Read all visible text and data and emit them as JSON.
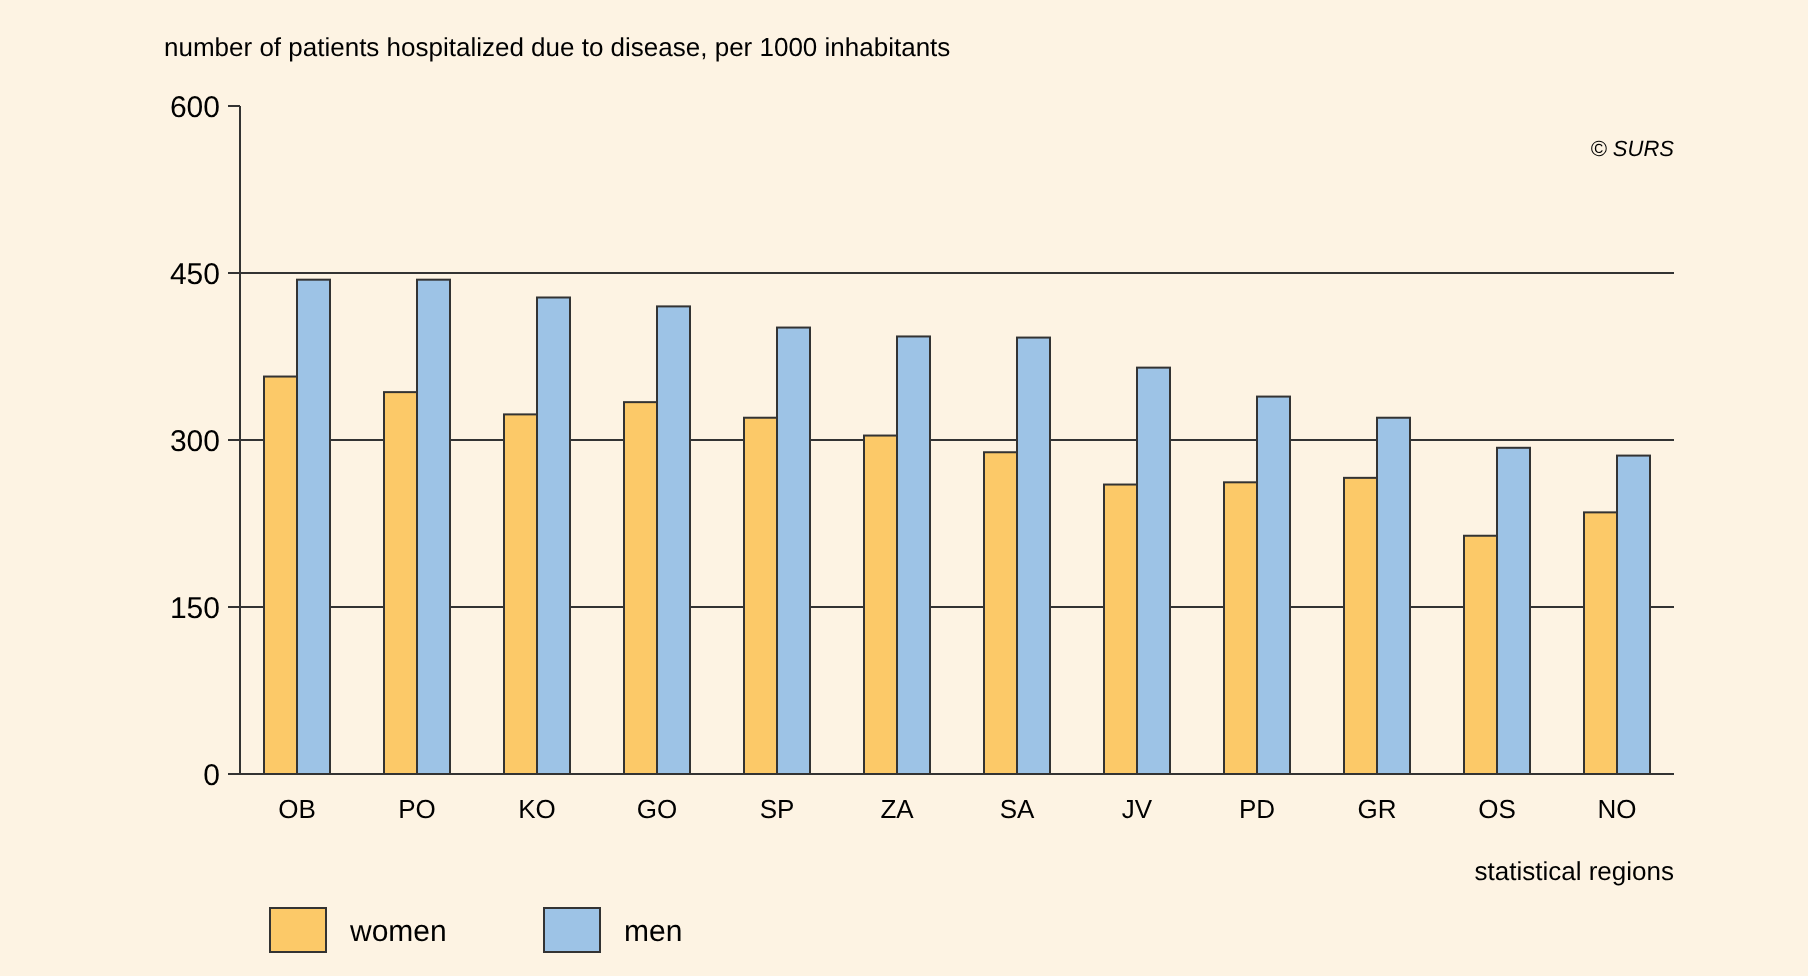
{
  "chart_data": {
    "type": "bar",
    "ylabel": "number of patients hospitalized due to disease, per 1000 inhabitants",
    "xlabel": "statistical regions",
    "annotations": [
      "© SURS"
    ],
    "categories": [
      "OB",
      "PO",
      "KO",
      "GO",
      "SP",
      "ZA",
      "SA",
      "JV",
      "PD",
      "GR",
      "OS",
      "NO"
    ],
    "series": [
      {
        "name": "women",
        "color": "#fcc968",
        "values": [
          357,
          343,
          323,
          334,
          320,
          304,
          289,
          260,
          262,
          266,
          214,
          235
        ]
      },
      {
        "name": "men",
        "color": "#9dc3e6",
        "values": [
          444,
          444,
          428,
          420,
          401,
          393,
          392,
          365,
          339,
          320,
          293,
          286
        ]
      }
    ],
    "ylim": [
      0,
      600
    ],
    "yticks": [
      0,
      150,
      300,
      450,
      600
    ],
    "grid": "y",
    "legend": "bottom left"
  }
}
